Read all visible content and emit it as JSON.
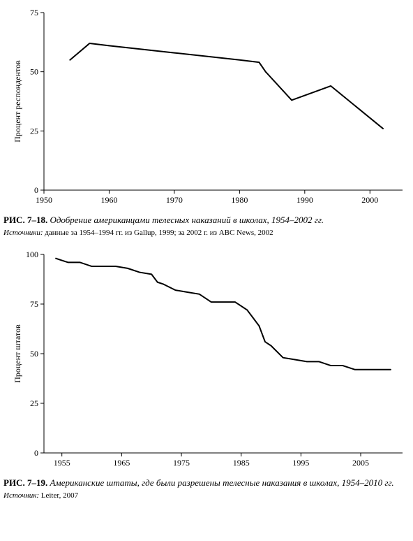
{
  "chart1": {
    "type": "line",
    "ylabel": "Процент респондентов",
    "label_fontsize": 12,
    "tick_fontsize": 12,
    "xlim": [
      1950,
      2005
    ],
    "ylim": [
      0,
      75
    ],
    "xticks": [
      1950,
      1960,
      1970,
      1980,
      1990,
      2000
    ],
    "yticks": [
      0,
      25,
      50,
      75
    ],
    "line_color": "#000000",
    "line_width": 2,
    "background_color": "#ffffff",
    "axis_color": "#000000",
    "data": [
      [
        1954,
        55
      ],
      [
        1957,
        62
      ],
      [
        1960,
        61
      ],
      [
        1970,
        58
      ],
      [
        1980,
        55
      ],
      [
        1983,
        54
      ],
      [
        1984,
        50
      ],
      [
        1988,
        38
      ],
      [
        1994,
        44
      ],
      [
        2002,
        26
      ]
    ],
    "caption_num": "РИС. 7–18.",
    "caption_title": "Одобрение американцами телесных наказаний в школах, 1954–2002 гг.",
    "source_label": "Источники:",
    "source_text": " данные за 1954–1994 гг. из Gallup, 1999; за 2002 г. из ABC News, 2002"
  },
  "chart2": {
    "type": "line",
    "ylabel": "Процент штатов",
    "label_fontsize": 12,
    "tick_fontsize": 12,
    "xlim": [
      1952,
      2012
    ],
    "ylim": [
      0,
      100
    ],
    "xticks": [
      1955,
      1965,
      1975,
      1985,
      1995,
      2005
    ],
    "yticks": [
      0,
      25,
      50,
      75,
      100
    ],
    "line_color": "#000000",
    "line_width": 2,
    "background_color": "#ffffff",
    "axis_color": "#000000",
    "data": [
      [
        1954,
        98
      ],
      [
        1955,
        97
      ],
      [
        1956,
        96
      ],
      [
        1958,
        96
      ],
      [
        1960,
        94
      ],
      [
        1962,
        94
      ],
      [
        1964,
        94
      ],
      [
        1966,
        93
      ],
      [
        1968,
        91
      ],
      [
        1970,
        90
      ],
      [
        1971,
        86
      ],
      [
        1972,
        85
      ],
      [
        1974,
        82
      ],
      [
        1976,
        81
      ],
      [
        1978,
        80
      ],
      [
        1980,
        76
      ],
      [
        1982,
        76
      ],
      [
        1984,
        76
      ],
      [
        1986,
        72
      ],
      [
        1988,
        64
      ],
      [
        1989,
        56
      ],
      [
        1990,
        54
      ],
      [
        1992,
        48
      ],
      [
        1994,
        47
      ],
      [
        1996,
        46
      ],
      [
        1998,
        46
      ],
      [
        2000,
        44
      ],
      [
        2002,
        44
      ],
      [
        2004,
        42
      ],
      [
        2006,
        42
      ],
      [
        2008,
        42
      ],
      [
        2010,
        42
      ]
    ],
    "caption_num": "РИС. 7–19.",
    "caption_title": "Американские штаты, где были разрешены телесные наказания в школах, 1954–2010 гг.",
    "source_label": "Источник:",
    "source_text": " Leiter, 2007"
  }
}
